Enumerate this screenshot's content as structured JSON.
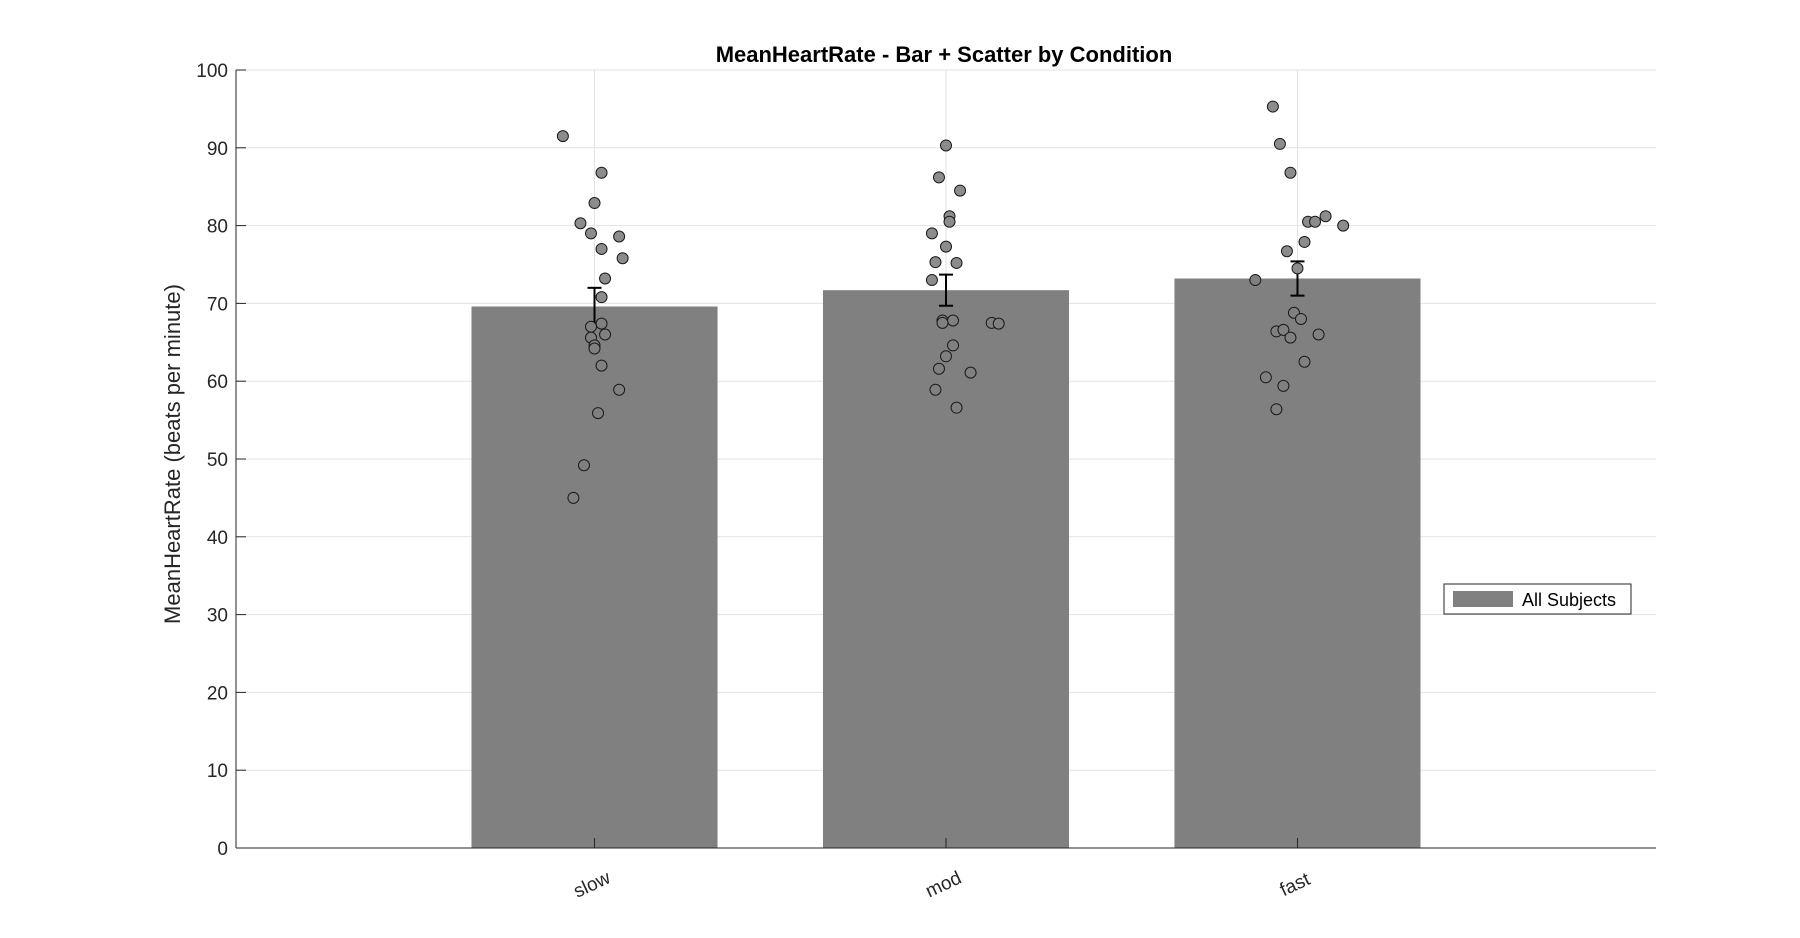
{
  "chart_data": {
    "type": "bar",
    "title": "MeanHeartRate - Bar + Scatter by Condition",
    "xlabel": "",
    "ylabel": "MeanHeartRate (beats per minute)",
    "ylim": [
      0,
      100
    ],
    "yticks": [
      "0",
      "10",
      "20",
      "30",
      "40",
      "50",
      "60",
      "70",
      "80",
      "90",
      "100"
    ],
    "categories": [
      "slow",
      "mod",
      "fast"
    ],
    "grid": true,
    "legend": {
      "placement": "right",
      "entries": [
        "All Subjects"
      ]
    },
    "series": [
      {
        "name": "All Subjects",
        "values": [
          69.6,
          71.7,
          73.2
        ],
        "error": [
          2.4,
          2.0,
          2.2
        ],
        "color": "#808080"
      }
    ],
    "scatter": [
      {
        "category": "slow",
        "points": [
          {
            "jitter": -0.09,
            "y": 91.5
          },
          {
            "jitter": 0.02,
            "y": 86.8
          },
          {
            "jitter": 0.0,
            "y": 82.9
          },
          {
            "jitter": -0.04,
            "y": 80.3
          },
          {
            "jitter": -0.01,
            "y": 79.0
          },
          {
            "jitter": 0.07,
            "y": 78.6
          },
          {
            "jitter": 0.02,
            "y": 77.0
          },
          {
            "jitter": 0.08,
            "y": 75.8
          },
          {
            "jitter": 0.03,
            "y": 73.2
          },
          {
            "jitter": 0.02,
            "y": 70.8
          },
          {
            "jitter": 0.02,
            "y": 67.4
          },
          {
            "jitter": -0.01,
            "y": 67.0
          },
          {
            "jitter": 0.03,
            "y": 66.0
          },
          {
            "jitter": -0.01,
            "y": 65.6
          },
          {
            "jitter": 0.0,
            "y": 64.6
          },
          {
            "jitter": 0.0,
            "y": 64.2
          },
          {
            "jitter": 0.02,
            "y": 62.0
          },
          {
            "jitter": 0.07,
            "y": 58.9
          },
          {
            "jitter": 0.01,
            "y": 55.9
          },
          {
            "jitter": -0.03,
            "y": 49.2
          },
          {
            "jitter": -0.06,
            "y": 45.0
          }
        ]
      },
      {
        "category": "mod",
        "points": [
          {
            "jitter": 0.0,
            "y": 90.3
          },
          {
            "jitter": -0.02,
            "y": 86.2
          },
          {
            "jitter": 0.04,
            "y": 84.5
          },
          {
            "jitter": 0.01,
            "y": 81.2
          },
          {
            "jitter": 0.01,
            "y": 80.5
          },
          {
            "jitter": -0.04,
            "y": 79.0
          },
          {
            "jitter": 0.0,
            "y": 77.3
          },
          {
            "jitter": -0.03,
            "y": 75.3
          },
          {
            "jitter": 0.03,
            "y": 75.2
          },
          {
            "jitter": -0.04,
            "y": 73.0
          },
          {
            "jitter": -0.01,
            "y": 67.8
          },
          {
            "jitter": 0.02,
            "y": 67.8
          },
          {
            "jitter": -0.01,
            "y": 67.5
          },
          {
            "jitter": 0.13,
            "y": 67.5
          },
          {
            "jitter": 0.15,
            "y": 67.4
          },
          {
            "jitter": 0.02,
            "y": 64.6
          },
          {
            "jitter": 0.0,
            "y": 63.2
          },
          {
            "jitter": -0.02,
            "y": 61.6
          },
          {
            "jitter": 0.07,
            "y": 61.1
          },
          {
            "jitter": -0.03,
            "y": 58.9
          },
          {
            "jitter": 0.03,
            "y": 56.6
          }
        ]
      },
      {
        "category": "fast",
        "points": [
          {
            "jitter": -0.07,
            "y": 95.3
          },
          {
            "jitter": -0.05,
            "y": 90.5
          },
          {
            "jitter": -0.02,
            "y": 86.8
          },
          {
            "jitter": 0.08,
            "y": 81.2
          },
          {
            "jitter": 0.03,
            "y": 80.5
          },
          {
            "jitter": 0.05,
            "y": 80.5
          },
          {
            "jitter": 0.13,
            "y": 80.0
          },
          {
            "jitter": 0.02,
            "y": 77.9
          },
          {
            "jitter": -0.03,
            "y": 76.7
          },
          {
            "jitter": 0.0,
            "y": 74.5
          },
          {
            "jitter": -0.12,
            "y": 73.0
          },
          {
            "jitter": -0.01,
            "y": 68.8
          },
          {
            "jitter": 0.01,
            "y": 68.0
          },
          {
            "jitter": -0.06,
            "y": 66.4
          },
          {
            "jitter": -0.04,
            "y": 66.6
          },
          {
            "jitter": 0.06,
            "y": 66.0
          },
          {
            "jitter": -0.02,
            "y": 65.6
          },
          {
            "jitter": 0.02,
            "y": 62.5
          },
          {
            "jitter": -0.09,
            "y": 60.5
          },
          {
            "jitter": -0.04,
            "y": 59.4
          },
          {
            "jitter": -0.06,
            "y": 56.4
          }
        ]
      }
    ]
  }
}
